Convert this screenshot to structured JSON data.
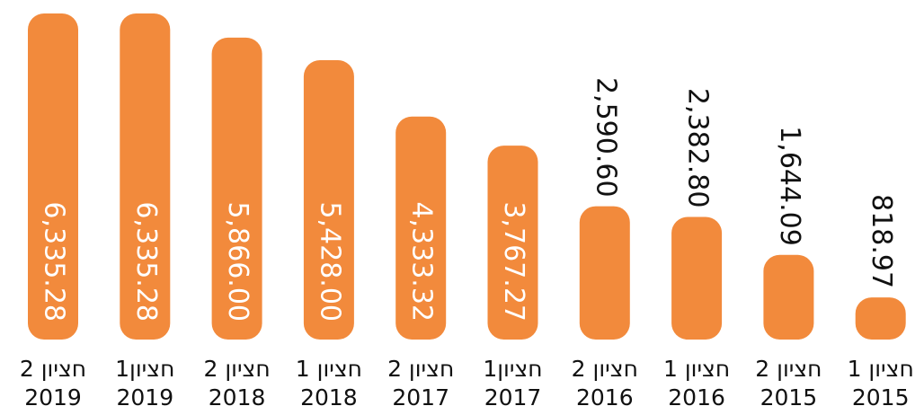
{
  "chart_data": {
    "type": "bar",
    "categories": [
      [
        "חציון 2",
        "2019"
      ],
      [
        "חציון1",
        "2019"
      ],
      [
        "חציון 2",
        "2018"
      ],
      [
        "חציון 1",
        "2018"
      ],
      [
        "חציון 2",
        "2017"
      ],
      [
        "חציון1",
        "2017"
      ],
      [
        "חציון 2",
        "2016"
      ],
      [
        "חציון 1",
        "2016"
      ],
      [
        "חציון 2",
        "2015"
      ],
      [
        "חציון 1",
        "2015"
      ]
    ],
    "values": [
      6335.28,
      6335.28,
      5866.0,
      5428.0,
      4333.32,
      3767.27,
      2590.6,
      2382.8,
      1644.09,
      818.97
    ],
    "value_labels": [
      "6,335.28",
      "6,335.28",
      "5,866.00",
      "5,428.00",
      "4,333.32",
      "3,767.27",
      "2,590.60",
      "2,382.80",
      "1,644.09",
      "818.97"
    ],
    "color": "#f28a3c"
  }
}
